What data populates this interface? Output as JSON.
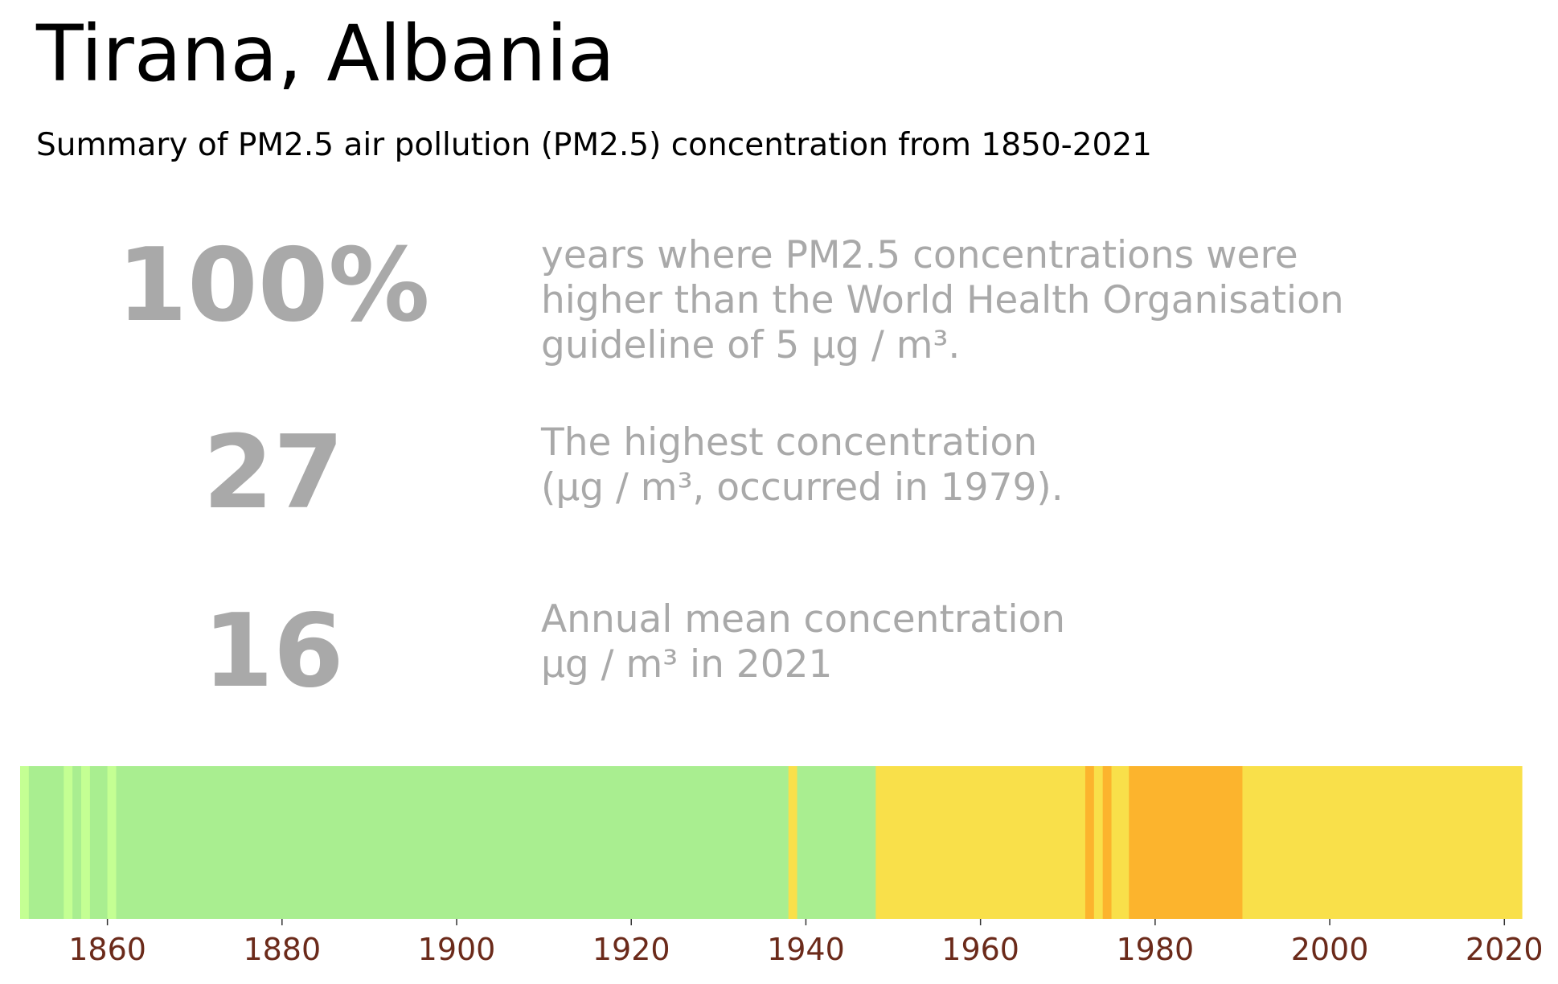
{
  "header": {
    "title": "Tirana, Albania",
    "subtitle": "Summary of PM2.5 air pollution (PM2.5) concentration from 1850-2021"
  },
  "stats": [
    {
      "value": "100%",
      "lines": [
        "years where PM2.5 concentrations were",
        "higher than the World Health Organisation",
        "guideline of 5 µg / m³."
      ]
    },
    {
      "value": "27",
      "lines": [
        "The highest concentration",
        "(µg / m³, occurred in 1979)."
      ]
    },
    {
      "value": "16",
      "lines": [
        "Annual mean concentration",
        "µg / m³ in 2021"
      ]
    }
  ],
  "colors": {
    "stat_grey": "#a9a9a9",
    "tick_label": "#6b2a1a",
    "green": "#a9ee90",
    "light_green": "#c4ff93",
    "yellow": "#f9e04a",
    "orange": "#fcb42d"
  },
  "chart_data": {
    "type": "heatmap",
    "title": "",
    "xlabel": "",
    "ylabel": "",
    "xlim": [
      1850,
      2022
    ],
    "x_ticks": [
      1860,
      1880,
      1900,
      1920,
      1940,
      1960,
      1980,
      2000,
      2020
    ],
    "segments": [
      {
        "start": 1850,
        "end": 1851,
        "category": "light_green"
      },
      {
        "start": 1851,
        "end": 1855,
        "category": "green"
      },
      {
        "start": 1855,
        "end": 1856,
        "category": "light_green"
      },
      {
        "start": 1856,
        "end": 1857,
        "category": "green"
      },
      {
        "start": 1857,
        "end": 1858,
        "category": "light_green"
      },
      {
        "start": 1858,
        "end": 1860,
        "category": "green"
      },
      {
        "start": 1860,
        "end": 1861,
        "category": "light_green"
      },
      {
        "start": 1861,
        "end": 1938,
        "category": "green"
      },
      {
        "start": 1938,
        "end": 1939,
        "category": "yellow"
      },
      {
        "start": 1939,
        "end": 1948,
        "category": "green"
      },
      {
        "start": 1948,
        "end": 1972,
        "category": "yellow"
      },
      {
        "start": 1972,
        "end": 1973,
        "category": "orange"
      },
      {
        "start": 1973,
        "end": 1974,
        "category": "yellow"
      },
      {
        "start": 1974,
        "end": 1975,
        "category": "orange"
      },
      {
        "start": 1975,
        "end": 1977,
        "category": "yellow"
      },
      {
        "start": 1977,
        "end": 1990,
        "category": "orange"
      },
      {
        "start": 1990,
        "end": 2022,
        "category": "yellow"
      }
    ]
  }
}
